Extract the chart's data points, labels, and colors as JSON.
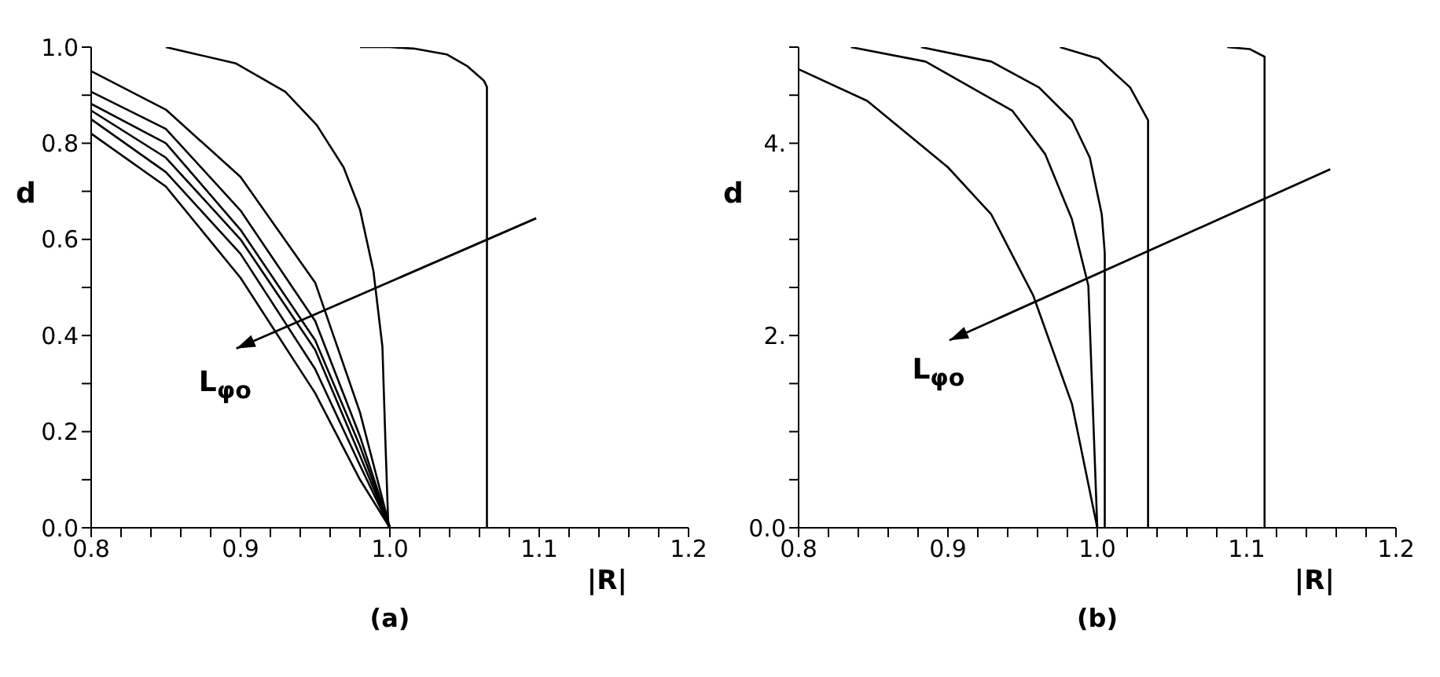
{
  "chart_data": [
    {
      "type": "line",
      "title": "(a)",
      "xlabel": "|R|",
      "ylabel": "d",
      "annotations": [
        "L$_{φo}$"
      ],
      "marker": "none",
      "line_style": "solid",
      "grid": false,
      "legend": false,
      "xlim": [
        0.8,
        1.2
      ],
      "ylim": [
        0,
        1.0
      ],
      "xticks": [
        0.8,
        {
          "value": 0.82,
          "label": null
        },
        {
          "value": 0.84,
          "label": null
        },
        {
          "value": 0.86,
          "label": null
        },
        {
          "value": 0.88,
          "label": null
        },
        0.9,
        {
          "value": 0.92,
          "label": null
        },
        {
          "value": 0.94,
          "label": null
        },
        {
          "value": 0.96,
          "label": null
        },
        {
          "value": 0.98,
          "label": null
        },
        {
          "value": 1.0,
          "label": "1.0"
        },
        {
          "value": 1.02,
          "label": null
        },
        {
          "value": 1.04,
          "label": null
        },
        {
          "value": 1.06,
          "label": null
        },
        {
          "value": 1.08,
          "label": null
        },
        1.1,
        {
          "value": 1.12,
          "label": null
        },
        {
          "value": 1.14,
          "label": null
        },
        {
          "value": 1.16,
          "label": null
        },
        {
          "value": 1.18,
          "label": null
        },
        1.2
      ],
      "yticks": [
        {
          "value": 0,
          "label": "0.0"
        },
        {
          "value": 0.1,
          "label": null
        },
        0.2,
        {
          "value": 0.3,
          "label": null
        },
        0.4,
        {
          "value": 0.5,
          "label": null
        },
        0.6,
        {
          "value": 0.7,
          "label": null
        },
        0.8,
        {
          "value": 0.9,
          "label": null
        },
        {
          "value": 1.0,
          "label": "1.0"
        }
      ],
      "series": [
        {
          "color": "#000000",
          "x": [
            0.98,
            1.0,
            1.016,
            1.038,
            1.052,
            1.063,
            1.065,
            1.065
          ],
          "values": [
            1.0,
            1.0,
            0.997,
            0.985,
            0.96,
            0.93,
            0.917,
            0
          ]
        },
        {
          "color": "#000000",
          "x": [
            0.85,
            0.868,
            0.897,
            0.93,
            0.951,
            0.969,
            0.98,
            0.989,
            0.995,
            0.997,
            0.999
          ],
          "values": [
            1.0,
            0.987,
            0.966,
            0.907,
            0.838,
            0.75,
            0.662,
            0.534,
            0.377,
            0.181,
            0
          ]
        },
        {
          "color": "#000000",
          "x": [
            0.8,
            0.85,
            0.9,
            0.95,
            0.98,
            1.0
          ],
          "values": [
            0.95,
            0.87,
            0.73,
            0.51,
            0.24,
            0
          ]
        },
        {
          "color": "#000000",
          "x": [
            0.8,
            0.85,
            0.9,
            0.95,
            0.98,
            1.0
          ],
          "values": [
            0.907,
            0.83,
            0.66,
            0.43,
            0.19,
            0
          ]
        },
        {
          "color": "#000000",
          "x": [
            0.8,
            0.85,
            0.9,
            0.95,
            0.98,
            1.0
          ],
          "values": [
            0.882,
            0.8,
            0.62,
            0.39,
            0.17,
            0
          ]
        },
        {
          "color": "#000000",
          "x": [
            0.8,
            0.85,
            0.9,
            0.95,
            0.98,
            1.0
          ],
          "values": [
            0.868,
            0.77,
            0.6,
            0.37,
            0.15,
            0
          ]
        },
        {
          "color": "#000000",
          "x": [
            0.8,
            0.85,
            0.9,
            0.95,
            0.98,
            1.0
          ],
          "values": [
            0.85,
            0.74,
            0.57,
            0.33,
            0.13,
            0
          ]
        },
        {
          "color": "#000000",
          "x": [
            0.8,
            0.85,
            0.9,
            0.95,
            0.98,
            1.0
          ],
          "values": [
            0.82,
            0.71,
            0.52,
            0.28,
            0.1,
            0
          ]
        }
      ]
    },
    {
      "type": "line",
      "title": "(b)",
      "xlabel": "|R|",
      "ylabel": "d",
      "annotations": [
        "L$_{φo}$"
      ],
      "marker": "none",
      "line_style": "solid",
      "grid": false,
      "legend": false,
      "xlim": [
        0.8,
        1.2
      ],
      "ylim": [
        0,
        5.0
      ],
      "xticks": [
        0.8,
        {
          "value": 0.82,
          "label": null
        },
        {
          "value": 0.84,
          "label": null
        },
        {
          "value": 0.86,
          "label": null
        },
        {
          "value": 0.88,
          "label": null
        },
        0.9,
        {
          "value": 0.92,
          "label": null
        },
        {
          "value": 0.94,
          "label": null
        },
        {
          "value": 0.96,
          "label": null
        },
        {
          "value": 0.98,
          "label": null
        },
        {
          "value": 1.0,
          "label": "1.0"
        },
        {
          "value": 1.02,
          "label": null
        },
        {
          "value": 1.04,
          "label": null
        },
        {
          "value": 1.06,
          "label": null
        },
        {
          "value": 1.08,
          "label": null
        },
        1.1,
        {
          "value": 1.12,
          "label": null
        },
        {
          "value": 1.14,
          "label": null
        },
        {
          "value": 1.16,
          "label": null
        },
        {
          "value": 1.18,
          "label": null
        },
        1.2
      ],
      "yticks": [
        {
          "value": 0,
          "label": "0.0"
        },
        {
          "value": 0.5,
          "label": null
        },
        {
          "value": 1,
          "label": null
        },
        {
          "value": 1.5,
          "label": null
        },
        {
          "value": 2,
          "label": "2."
        },
        {
          "value": 2.5,
          "label": null
        },
        {
          "value": 3,
          "label": null
        },
        {
          "value": 3.5,
          "label": null
        },
        {
          "value": 4,
          "label": "4."
        },
        {
          "value": 4.5,
          "label": null
        },
        {
          "value": 5,
          "label": null
        }
      ],
      "series": [
        {
          "color": "#000000",
          "x": [
            0.8,
            0.846,
            0.9,
            0.929,
            0.957,
            0.983,
            1.0
          ],
          "values": [
            4.77,
            4.44,
            3.75,
            3.26,
            2.42,
            1.29,
            0
          ]
        },
        {
          "color": "#000000",
          "x": [
            0.835,
            0.885,
            0.943,
            0.965,
            0.983,
            0.994,
            1.0
          ],
          "values": [
            5.0,
            4.85,
            4.34,
            3.89,
            3.21,
            2.52,
            0
          ]
        },
        {
          "color": "#000000",
          "x": [
            0.882,
            0.929,
            0.961,
            0.983,
            0.995,
            1.003,
            1.005,
            1.005
          ],
          "values": [
            5.0,
            4.85,
            4.58,
            4.24,
            3.85,
            3.26,
            2.86,
            0
          ]
        },
        {
          "color": "#000000",
          "x": [
            0.975,
            1.001,
            1.022,
            1.034,
            1.034
          ],
          "values": [
            5.0,
            4.88,
            4.58,
            4.24,
            0
          ]
        },
        {
          "color": "#000000",
          "x": [
            1.087,
            1.102,
            1.112,
            1.112
          ],
          "values": [
            5.0,
            4.98,
            4.9,
            0
          ]
        }
      ]
    }
  ]
}
